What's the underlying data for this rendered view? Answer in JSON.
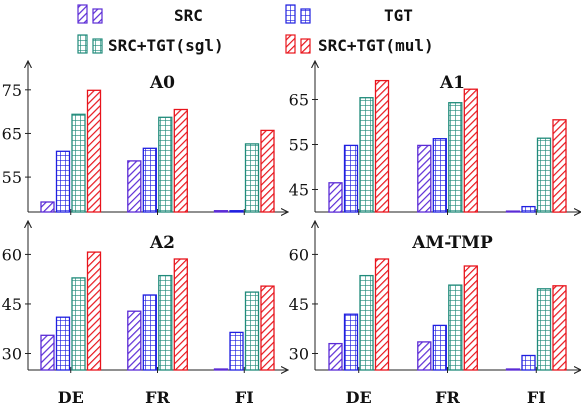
{
  "legend": [
    {
      "label": "SRC",
      "color": "#5b2bd6",
      "pattern": "diagonal-lines"
    },
    {
      "label": "TGT",
      "color": "#1f1fe0",
      "pattern": "grid"
    },
    {
      "label": "SRC+TGT(sgl)",
      "color": "#1f8a7a",
      "pattern": "grid"
    },
    {
      "label": "SRC+TGT(mul)",
      "color": "#e8141c",
      "pattern": "diagonal-lines"
    }
  ],
  "chart_data": [
    {
      "type": "bar",
      "title": "A0",
      "categories": [
        "DE",
        "FR",
        "FI"
      ],
      "yticks": [
        55,
        65,
        75
      ],
      "ylim": [
        47,
        80
      ],
      "series": [
        {
          "name": "SRC",
          "values": [
            49.3,
            58.7,
            47.3
          ]
        },
        {
          "name": "TGT",
          "values": [
            60.9,
            61.6,
            47.3
          ]
        },
        {
          "name": "SRC+TGT(sgl)",
          "values": [
            69.4,
            68.7,
            62.6
          ]
        },
        {
          "name": "SRC+TGT(mul)",
          "values": [
            74.9,
            70.5,
            65.7
          ]
        }
      ]
    },
    {
      "type": "bar",
      "title": "A1",
      "categories": [
        "DE",
        "FR",
        "FI"
      ],
      "yticks": [
        45,
        55,
        65
      ],
      "ylim": [
        40,
        72
      ],
      "series": [
        {
          "name": "SRC",
          "values": [
            46.5,
            54.8,
            40.2
          ]
        },
        {
          "name": "TGT",
          "values": [
            54.8,
            56.3,
            41.2
          ]
        },
        {
          "name": "SRC+TGT(sgl)",
          "values": [
            65.4,
            64.3,
            56.4
          ]
        },
        {
          "name": "SRC+TGT(mul)",
          "values": [
            69.2,
            67.3,
            60.5
          ]
        }
      ]
    },
    {
      "type": "bar",
      "title": "A2",
      "categories": [
        "DE",
        "FR",
        "FI"
      ],
      "yticks": [
        30,
        45,
        60
      ],
      "ylim": [
        25,
        68
      ],
      "series": [
        {
          "name": "SRC",
          "values": [
            35.5,
            42.8,
            25.3
          ]
        },
        {
          "name": "TGT",
          "values": [
            41.0,
            47.7,
            36.4
          ]
        },
        {
          "name": "SRC+TGT(sgl)",
          "values": [
            52.9,
            53.6,
            48.6
          ]
        },
        {
          "name": "SRC+TGT(mul)",
          "values": [
            60.7,
            58.6,
            50.4
          ]
        }
      ]
    },
    {
      "type": "bar",
      "title": "AM-TMP",
      "categories": [
        "DE",
        "FR",
        "FI"
      ],
      "yticks": [
        30,
        45,
        60
      ],
      "ylim": [
        25,
        68
      ],
      "series": [
        {
          "name": "SRC",
          "values": [
            33.0,
            33.5,
            25.3
          ]
        },
        {
          "name": "TGT",
          "values": [
            41.9,
            38.5,
            29.4
          ]
        },
        {
          "name": "SRC+TGT(sgl)",
          "values": [
            53.6,
            50.7,
            49.6
          ]
        },
        {
          "name": "SRC+TGT(mul)",
          "values": [
            58.6,
            56.5,
            50.5
          ]
        }
      ]
    }
  ]
}
